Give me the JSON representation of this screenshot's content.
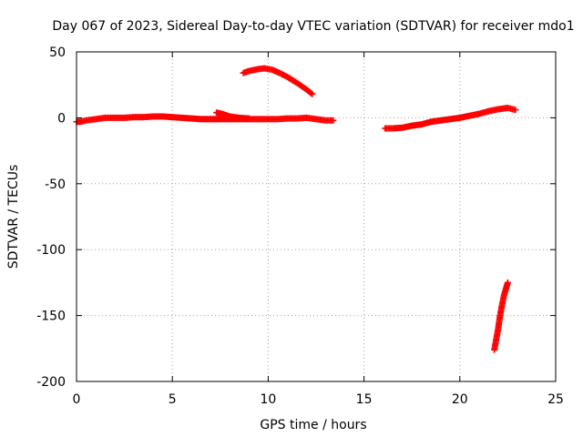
{
  "chart_data": {
    "type": "scatter",
    "title": "Day 067 of 2023, Sidereal Day-to-day VTEC variation (SDTVAR) for receiver mdo1",
    "xlabel": "GPS time / hours",
    "ylabel": "SDTVAR / TECUs",
    "xlim": [
      0,
      25
    ],
    "ylim": [
      -200,
      50
    ],
    "xticks": [
      0,
      5,
      10,
      15,
      20,
      25
    ],
    "yticks": [
      -200,
      -150,
      -100,
      -50,
      0,
      50
    ],
    "xtick_labels": [
      "0",
      "5",
      "10",
      "15",
      "20",
      "25"
    ],
    "ytick_labels": [
      "-200",
      "-150",
      "-100",
      "-50",
      "0",
      "50"
    ],
    "grid": true,
    "marker": "+",
    "series": [
      {
        "name": "mdo1",
        "color": "#ff0000",
        "tracks": [
          [
            [
              0.0,
              -3
            ],
            [
              0.2,
              -3
            ],
            [
              0.5,
              -2
            ],
            [
              1.0,
              -1
            ],
            [
              1.5,
              0
            ],
            [
              2.0,
              0
            ],
            [
              2.5,
              0
            ],
            [
              3.0,
              0.5
            ],
            [
              3.5,
              0.5
            ],
            [
              4.0,
              1
            ],
            [
              4.5,
              1
            ],
            [
              5.0,
              0.5
            ],
            [
              5.5,
              0
            ],
            [
              6.0,
              -0.5
            ],
            [
              6.5,
              -1
            ],
            [
              7.0,
              -1
            ],
            [
              7.5,
              -1
            ],
            [
              8.0,
              -1
            ],
            [
              8.5,
              -1
            ],
            [
              9.0,
              -1
            ],
            [
              9.5,
              -1
            ],
            [
              10.0,
              -1
            ],
            [
              10.5,
              -1
            ],
            [
              11.0,
              -0.5
            ],
            [
              11.5,
              -0.5
            ],
            [
              12.0,
              0
            ],
            [
              12.5,
              -1
            ],
            [
              13.0,
              -2
            ],
            [
              13.4,
              -2
            ]
          ],
          [
            [
              7.3,
              4
            ],
            [
              7.6,
              3
            ],
            [
              8.0,
              1
            ],
            [
              8.5,
              0
            ],
            [
              9.0,
              -0.5
            ]
          ],
          [
            [
              8.7,
              34
            ],
            [
              9.0,
              35.5
            ],
            [
              9.5,
              37
            ],
            [
              9.8,
              37.5
            ],
            [
              10.2,
              36.5
            ],
            [
              10.6,
              34
            ],
            [
              11.0,
              31
            ],
            [
              11.5,
              26.5
            ],
            [
              12.0,
              21.5
            ],
            [
              12.3,
              18
            ]
          ],
          [
            [
              16.1,
              -8
            ],
            [
              16.5,
              -8
            ],
            [
              17.0,
              -7.5
            ],
            [
              17.5,
              -6
            ],
            [
              18.0,
              -5
            ],
            [
              18.5,
              -3
            ],
            [
              19.0,
              -2
            ],
            [
              19.5,
              -1
            ],
            [
              20.0,
              0
            ],
            [
              20.5,
              1.5
            ],
            [
              21.0,
              3
            ],
            [
              21.5,
              5
            ],
            [
              22.0,
              6.5
            ],
            [
              22.5,
              7.5
            ],
            [
              22.9,
              6
            ]
          ],
          [
            [
              21.8,
              -176
            ],
            [
              21.9,
              -168
            ],
            [
              22.0,
              -160
            ],
            [
              22.1,
              -150
            ],
            [
              22.2,
              -142
            ],
            [
              22.3,
              -135
            ],
            [
              22.4,
              -130
            ],
            [
              22.5,
              -125
            ]
          ]
        ]
      }
    ]
  }
}
